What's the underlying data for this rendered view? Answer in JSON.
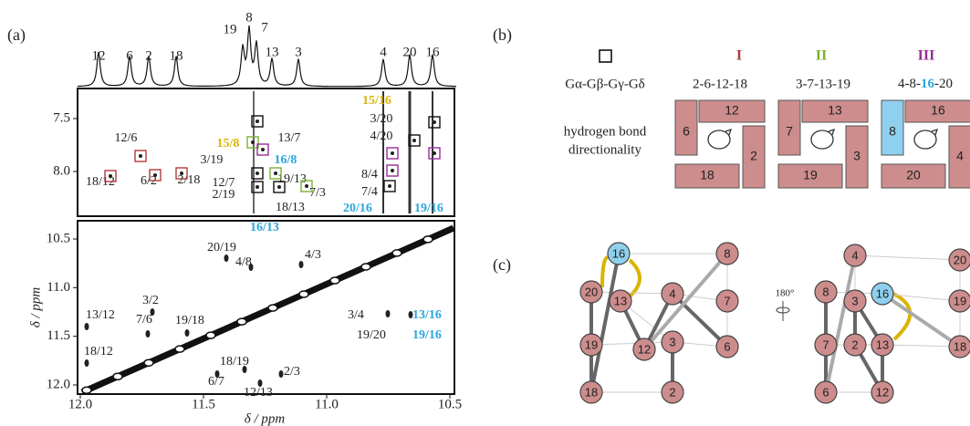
{
  "panel_a": {
    "label": "(a)",
    "peak_labels": [
      "12",
      "6",
      "2",
      "18",
      "19",
      "8",
      "7",
      "13",
      "3",
      "4",
      "20",
      "16"
    ],
    "upper_labels": [
      "15/8",
      "16/8",
      "13/7",
      "3/19",
      "12/6",
      "12/7",
      "19/13",
      "6/2",
      "2/18",
      "18/12",
      "2/19",
      "7/3",
      "18/13",
      "15/16",
      "3/20",
      "4/20",
      "8/4",
      "7/4",
      "20/16",
      "19/16"
    ],
    "lower_labels": [
      "16/13",
      "20/19",
      "4/8",
      "4/3",
      "13/12",
      "3/2",
      "7/6",
      "19/18",
      "18/12",
      "3/4",
      "19/20",
      "13/16",
      "19/16",
      "18/19",
      "6/7",
      "2/3",
      "12/13"
    ],
    "upper_yticks": [
      7.5,
      {
        "value": 8.0,
        "label": "8.0"
      }
    ],
    "lower_yticks": [
      10.5,
      {
        "value": 11.0,
        "label": "11.0"
      },
      11.5,
      {
        "value": 12.0,
        "label": "12.0"
      }
    ],
    "xticks": [
      {
        "value": 12.0,
        "label": "12.0"
      },
      11.5,
      {
        "value": 11.0,
        "label": "11.0"
      },
      10.5
    ],
    "ylabel": "δ / ppm",
    "xlabel": "δ / ppm"
  },
  "panel_b": {
    "label": "(b)",
    "groups": [
      "I",
      "II",
      "III"
    ],
    "pattern": "Gα-Gβ-Gγ-Gδ",
    "sequences": [
      "2-6-12-18",
      "3-7-13-19"
    ],
    "sequence_3": [
      "4-8-",
      "16",
      "-20"
    ],
    "row_label": [
      "hydrogen bond",
      "directionality"
    ],
    "diagrams": [
      [
        "12",
        "6",
        "2",
        "18"
      ],
      [
        "13",
        "7",
        "3",
        "19"
      ],
      [
        "16",
        "8",
        "4",
        "20"
      ]
    ]
  },
  "panel_c": {
    "label": "(c)",
    "rotation": "180°",
    "cube_1": [
      "16",
      "8",
      "20",
      "13",
      "4",
      "7",
      "19",
      "12",
      "3",
      "6",
      "18",
      "2"
    ],
    "cube_2": [
      "4",
      "20",
      "8",
      "3",
      "16",
      "19",
      "7",
      "2",
      "13",
      "18",
      "6",
      "12"
    ]
  }
}
